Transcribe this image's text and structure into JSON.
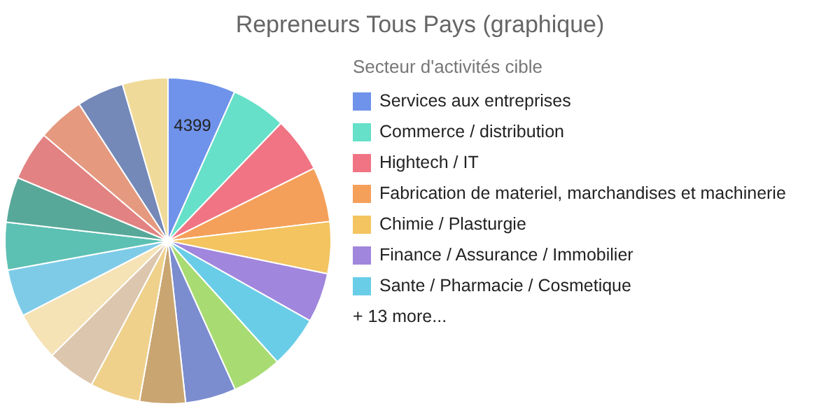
{
  "chart_data": {
    "type": "pie",
    "title": "Repreneurs Tous Pays (graphique)",
    "legend_title": "Secteur d'activités cible",
    "legend": "right",
    "categories": [
      "Services aux entreprises",
      "Commerce / distribution",
      "Hightech / IT",
      "Fabrication de materiel, marchandises et machinerie",
      "Chimie / Plasturgie",
      "Finance / Assurance / Immobilier",
      "Sante / Pharmacie / Cosmetique",
      null,
      null,
      null,
      null,
      null,
      null,
      null,
      null,
      null,
      null,
      null,
      null,
      null
    ],
    "values": [
      4399,
      3610,
      3600,
      3580,
      3380,
      3230,
      3380,
      3250,
      3300,
      2980,
      3270,
      3160,
      3180,
      3080,
      3100,
      2960,
      3210,
      3030,
      3070,
      2960
    ],
    "colors": [
      "#6f93ea",
      "#66e0c8",
      "#f07484",
      "#f5a05a",
      "#f3c45f",
      "#a086dc",
      "#6acde8",
      "#a8dc72",
      "#7b8ccf",
      "#c9a571",
      "#efd18c",
      "#ddc6ae",
      "#f5e2b5",
      "#7ecbe8",
      "#5cc0b3",
      "#57a898",
      "#e28282",
      "#e59a80",
      "#7489b8",
      "#f0da99"
    ],
    "value_labels": [
      "4399",
      null,
      null,
      null,
      null,
      null,
      null,
      null,
      null,
      null,
      null,
      null,
      null,
      null,
      null,
      null,
      null,
      null,
      null,
      null
    ],
    "annotations": [
      "+ 13 more..."
    ]
  }
}
